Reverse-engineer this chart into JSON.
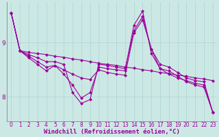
{
  "background_color": "#cce8e4",
  "grid_color": "#aad4d0",
  "line_color": "#990099",
  "marker": "D",
  "markersize": 2.2,
  "linewidth": 0.8,
  "xlabel": "Windchill (Refroidissement éolien,°C)",
  "xlabel_fontsize": 6.5,
  "tick_fontsize": 5.5,
  "ytick_fontsize": 6.5,
  "xlim": [
    -0.5,
    23.5
  ],
  "ylim": [
    7.55,
    9.75
  ],
  "yticks": [
    8,
    9
  ],
  "xticks": [
    0,
    1,
    2,
    3,
    4,
    5,
    6,
    7,
    8,
    9,
    10,
    11,
    12,
    13,
    14,
    15,
    16,
    17,
    18,
    19,
    20,
    21,
    22,
    23
  ],
  "series": [
    [
      9.55,
      8.85,
      8.82,
      8.8,
      8.78,
      8.75,
      8.73,
      8.7,
      8.68,
      8.65,
      8.62,
      8.6,
      8.58,
      8.55,
      8.53,
      8.5,
      8.48,
      8.45,
      8.43,
      8.4,
      8.38,
      8.35,
      8.33,
      8.3
    ],
    [
      9.55,
      8.85,
      8.78,
      8.72,
      8.65,
      8.65,
      8.6,
      8.08,
      7.88,
      7.95,
      8.6,
      8.58,
      8.55,
      8.52,
      9.22,
      9.48,
      8.88,
      8.6,
      8.55,
      8.45,
      8.35,
      8.3,
      8.28,
      7.72
    ],
    [
      9.55,
      8.85,
      8.75,
      8.65,
      8.55,
      8.58,
      8.5,
      8.42,
      8.35,
      8.32,
      8.5,
      8.45,
      8.42,
      8.4,
      9.18,
      9.42,
      8.88,
      8.52,
      8.42,
      8.35,
      8.3,
      8.25,
      8.22,
      7.72
    ],
    [
      9.55,
      8.85,
      8.72,
      8.6,
      8.48,
      8.58,
      8.42,
      8.22,
      7.98,
      8.08,
      8.55,
      8.52,
      8.5,
      8.48,
      9.32,
      9.58,
      8.8,
      8.52,
      8.48,
      8.38,
      8.28,
      8.22,
      8.18,
      7.72
    ]
  ]
}
